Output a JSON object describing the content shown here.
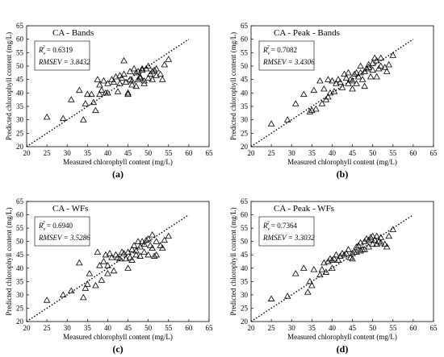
{
  "chart_data": [
    {
      "type": "scatter",
      "panel_label": "(a)",
      "title": "CA - Bands",
      "xlabel": "Measured chlorophyll content (mg/L)",
      "ylabel": "Predicted chlorophyll content (mg/L)",
      "xlim": [
        20,
        65
      ],
      "ylim": [
        20,
        65
      ],
      "ticks": [
        20,
        25,
        30,
        35,
        40,
        45,
        50,
        55,
        60,
        65
      ],
      "reference_line": "1:1 dotted",
      "stat_r2_label": "R",
      "stat_r2_sub": "v",
      "stat_r2_sup": "2",
      "stat_r2_value": " = 0.6319",
      "stat_rmsev": "RMSEV = 3.8432",
      "x": [
        25,
        29,
        31,
        33,
        34,
        34.5,
        35,
        36,
        36.5,
        37,
        37.5,
        38,
        38,
        38.5,
        39,
        39.5,
        40,
        40,
        41,
        41.5,
        42,
        42.5,
        43,
        43,
        43.5,
        44,
        44,
        44.5,
        45,
        45,
        45.5,
        45.5,
        46,
        46,
        46.5,
        47,
        47,
        47.5,
        47.5,
        48,
        48,
        48.5,
        48.5,
        49,
        49,
        49.5,
        50,
        50,
        50.5,
        51,
        51,
        51.5,
        52,
        52,
        53,
        53.5,
        54,
        55
      ],
      "y": [
        31,
        30.5,
        37.5,
        41,
        30,
        36,
        39.5,
        39.5,
        36.5,
        33.5,
        45,
        43,
        39.5,
        41,
        44.5,
        40,
        43.5,
        40,
        45,
        44,
        46,
        40.5,
        43.5,
        46.5,
        45.5,
        47,
        52,
        44,
        40,
        39.5,
        48,
        45,
        43,
        44.5,
        49,
        47.5,
        42.5,
        45,
        48,
        46,
        45.5,
        49,
        48.5,
        43.5,
        44.5,
        49,
        45.5,
        50,
        47,
        48,
        45,
        48.5,
        46.5,
        49,
        47,
        45,
        50.5,
        52.5
      ]
    },
    {
      "type": "scatter",
      "panel_label": "(b)",
      "title": "CA - Peak - Bands",
      "xlabel": "Measured chlorophyll content (mg/L)",
      "ylabel": "Predicted chlorophyll content (mg/L)",
      "xlim": [
        20,
        65
      ],
      "ylim": [
        20,
        65
      ],
      "ticks": [
        20,
        25,
        30,
        35,
        40,
        45,
        50,
        55,
        60,
        65
      ],
      "reference_line": "1:1 dotted",
      "stat_r2_label": "R",
      "stat_r2_sub": "v",
      "stat_r2_sup": "2",
      "stat_r2_value": " = 0.7082",
      "stat_rmsev": "RMSEV = 3.4306",
      "x": [
        25,
        29,
        31,
        33,
        34.5,
        35,
        35.5,
        36,
        37,
        37.5,
        38,
        38.5,
        39,
        39,
        39.5,
        40,
        40.5,
        41,
        41.5,
        42,
        42.5,
        43,
        43.5,
        44,
        44,
        44.5,
        45,
        45,
        45.5,
        46,
        46,
        46.5,
        47,
        47,
        47.5,
        48,
        48,
        48.5,
        49,
        49,
        49.5,
        50,
        50,
        50.5,
        51,
        51,
        51.5,
        52,
        52,
        53,
        53.5,
        54,
        55
      ],
      "y": [
        28.5,
        30,
        36,
        39.5,
        33,
        33.5,
        41,
        34,
        44.5,
        36,
        41.5,
        37.5,
        38.5,
        45,
        40,
        44.5,
        40.5,
        43.5,
        45,
        44,
        42,
        47,
        45.5,
        43.5,
        47.5,
        45,
        41.5,
        44.5,
        47,
        47.5,
        43.5,
        46,
        47.5,
        50,
        45,
        48,
        42.5,
        49,
        49.5,
        50.5,
        46,
        51,
        48.5,
        53,
        52,
        46,
        49,
        53,
        50,
        49.5,
        48,
        50.5,
        54
      ]
    },
    {
      "type": "scatter",
      "panel_label": "(c)",
      "title": "CA - WFs",
      "xlabel": "Measured chlorophyll content (mg/L)",
      "ylabel": "Predicted chlorophyll content (mg/L)",
      "xlim": [
        20,
        65
      ],
      "ylim": [
        20,
        65
      ],
      "ticks": [
        20,
        25,
        30,
        35,
        40,
        45,
        50,
        55,
        60,
        65
      ],
      "reference_line": "1:1 dotted",
      "stat_r2_label": "R",
      "stat_r2_sub": "v",
      "stat_r2_sup": "2",
      "stat_r2_value": " = 0.6940",
      "stat_rmsev": "RMSEV = 3.5286",
      "x": [
        25,
        29,
        31,
        33,
        34,
        34.5,
        35,
        35.5,
        37,
        37.5,
        38,
        38.5,
        39,
        39.5,
        40,
        40,
        40.5,
        41,
        41.5,
        42,
        42.5,
        43,
        43.5,
        44,
        44.5,
        45,
        45,
        45.5,
        46,
        46,
        46.5,
        47,
        47,
        47.5,
        48,
        48,
        48.5,
        49,
        49,
        49.5,
        50,
        50,
        50.5,
        51,
        51,
        51.5,
        52,
        52,
        53,
        53.5,
        54,
        55
      ],
      "y": [
        28,
        30,
        31.5,
        42,
        29,
        32.5,
        34,
        38,
        33.5,
        46,
        41,
        35.5,
        42.5,
        45,
        41,
        38,
        45.5,
        44,
        39,
        45,
        44,
        43.5,
        46,
        45.5,
        43.5,
        46,
        40,
        44,
        47,
        43,
        48.5,
        46.5,
        45,
        50,
        48,
        44.5,
        50,
        49,
        46,
        50.5,
        45,
        51,
        48.5,
        52.5,
        47.5,
        44.5,
        50,
        45,
        48.5,
        47.5,
        50.5,
        52
      ]
    },
    {
      "type": "scatter",
      "panel_label": "(d)",
      "title": "CA - Peak - WFs",
      "xlabel": "Measured chlorophyll content (mg/L)",
      "ylabel": "Predicted chlorophyll content (mg/L)",
      "xlim": [
        20,
        65
      ],
      "ylim": [
        20,
        65
      ],
      "ticks": [
        20,
        25,
        30,
        35,
        40,
        45,
        50,
        55,
        60,
        65
      ],
      "reference_line": "1:1 dotted",
      "stat_r2_label": "R",
      "stat_r2_sub": "v",
      "stat_r2_sup": "2",
      "stat_r2_value": " = 0.7364",
      "stat_rmsev": "RMSEV = 3.3032",
      "x": [
        25,
        29,
        31,
        33,
        34,
        34.5,
        35,
        35.5,
        37,
        37.5,
        38,
        38.5,
        39,
        39.5,
        40,
        40,
        40.5,
        41,
        41.5,
        42,
        42.5,
        43,
        43.5,
        44,
        44.5,
        45,
        45,
        45.5,
        46,
        46,
        46.5,
        47,
        47,
        47.5,
        48,
        48,
        48.5,
        49,
        49,
        49.5,
        50,
        50,
        50.5,
        51,
        51,
        51.5,
        52,
        52,
        53,
        53.5,
        54,
        55
      ],
      "y": [
        28.5,
        29.5,
        38,
        40,
        31,
        35,
        33.5,
        39.5,
        37.5,
        39.5,
        42,
        38.5,
        42.5,
        43.5,
        43,
        40,
        43.5,
        45,
        43,
        44.5,
        45.5,
        45,
        45.5,
        47,
        44,
        45.5,
        43.5,
        46,
        48,
        46,
        48.5,
        49.5,
        46.5,
        47,
        50,
        47,
        51,
        50.5,
        48,
        51.5,
        49,
        52,
        50.5,
        52,
        49,
        50,
        49.5,
        51.5,
        49,
        48,
        52,
        54.5
      ]
    }
  ]
}
